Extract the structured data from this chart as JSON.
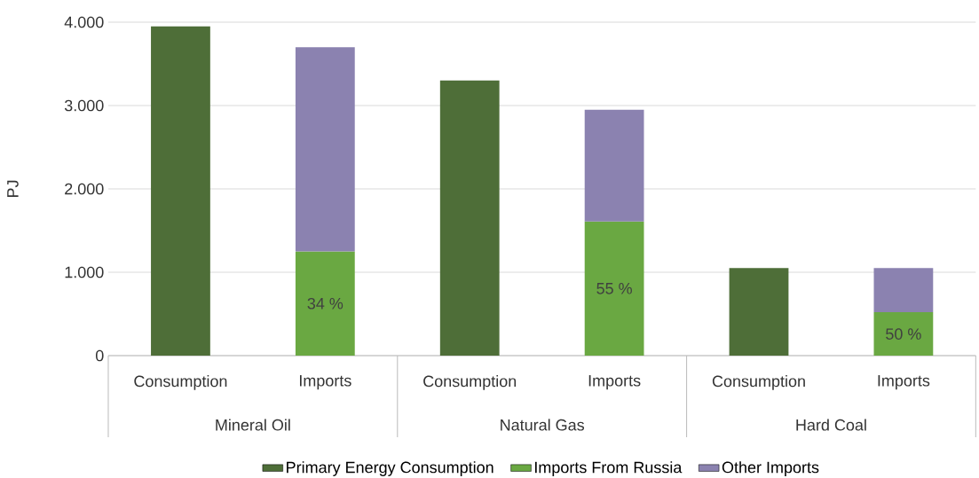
{
  "chart_data": {
    "type": "bar",
    "stacked": true,
    "ylabel": "PJ",
    "categories": [
      "Consumption",
      "Imports",
      "Consumption",
      "Imports",
      "Consumption",
      "Imports"
    ],
    "annotations": [
      "Mineral Oil",
      "Natural Gas",
      "Hard Coal",
      "34 %",
      "55 %",
      "50 %"
    ],
    "series": [
      {
        "name": "Primary Energy Consumption",
        "color": "#4e6e38",
        "values": [
          3950,
          null,
          3300,
          null,
          1050,
          null
        ]
      },
      {
        "name": "Imports From Russia",
        "color": "#6aa842",
        "values": [
          null,
          1250,
          null,
          1610,
          null,
          520
        ]
      },
      {
        "name": "Other Imports",
        "color": "#8b82b0",
        "values": [
          null,
          2450,
          null,
          1340,
          null,
          530
        ]
      }
    ],
    "ylim": [
      0,
      4000
    ],
    "yticks": [
      0,
      {
        "value": 1000,
        "label": "1.000"
      },
      {
        "value": 2000,
        "label": "2.000"
      },
      {
        "value": 3000,
        "label": "3.000"
      },
      {
        "value": 4000,
        "label": "4.000"
      }
    ],
    "grid": "y",
    "legend": "bottom"
  }
}
